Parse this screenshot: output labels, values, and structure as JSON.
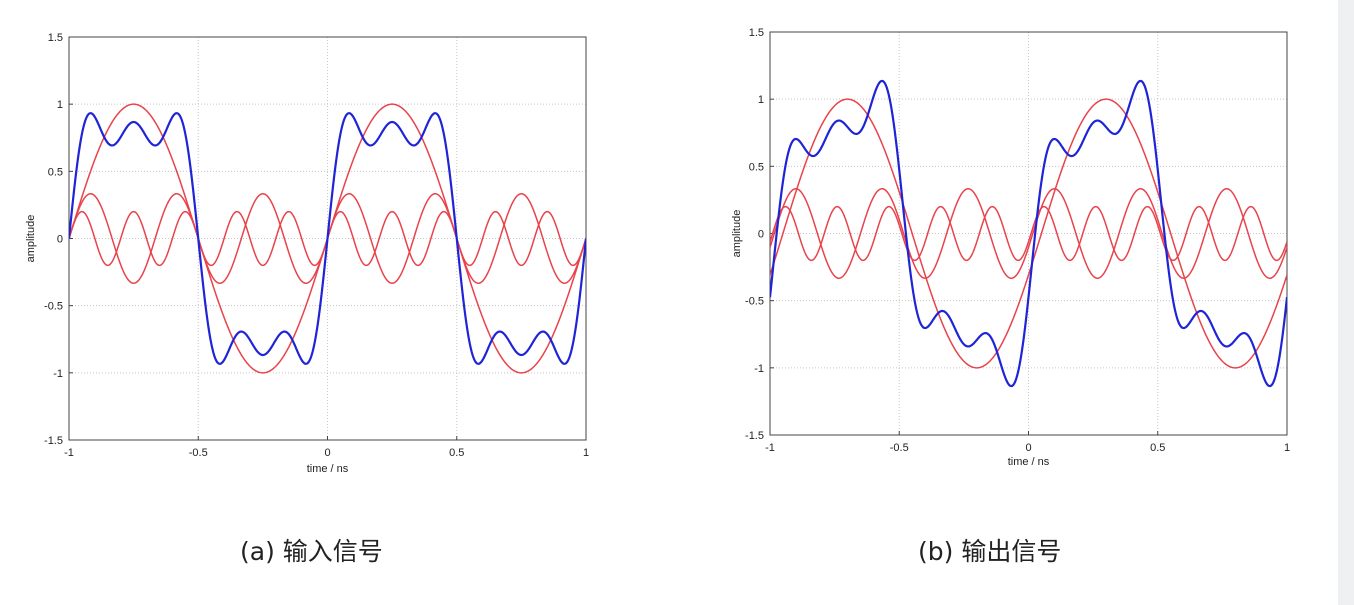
{
  "colors": {
    "harmonic": "#e8434b",
    "sum": "#1f24d6"
  },
  "chart_data": [
    {
      "type": "line",
      "xlabel": "time / ns",
      "ylabel": "amplitude",
      "xlim": [
        -1,
        1
      ],
      "ylim": [
        -1.5,
        1.5
      ],
      "xticks": [
        "-1",
        "-0.5",
        "0",
        "0.5",
        "1"
      ],
      "yticks": [
        "1.5",
        "1",
        "0.5",
        "0",
        "-0.5",
        "-1",
        "-1.5"
      ],
      "grid": true,
      "caption": "(a) 输入信号",
      "series": [
        {
          "color": "#e8434b",
          "amplitude": 1,
          "harmonic": 1,
          "phase_ns": 0,
          "role": "component"
        },
        {
          "color": "#e8434b",
          "amplitude": 0.333,
          "harmonic": 3,
          "phase_ns": 0,
          "role": "component"
        },
        {
          "color": "#e8434b",
          "amplitude": 0.2,
          "harmonic": 5,
          "phase_ns": 0,
          "role": "component"
        },
        {
          "color": "#1f24d6",
          "role": "sum"
        }
      ]
    },
    {
      "type": "line",
      "xlabel": "time / ns",
      "ylabel": "amplitude",
      "xlim": [
        -1,
        1
      ],
      "ylim": [
        -1.5,
        1.5
      ],
      "xticks": [
        "-1",
        "-0.5",
        "0",
        "0.5",
        "1"
      ],
      "yticks": [
        "1.5",
        "1",
        "0.5",
        "0",
        "-0.5",
        "-1",
        "-1.5"
      ],
      "grid": true,
      "caption": "(b) 输出信号",
      "series": [
        {
          "color": "#e8434b",
          "amplitude": 1,
          "harmonic": 1,
          "phase_ns": 0.05,
          "role": "component"
        },
        {
          "color": "#e8434b",
          "amplitude": 0.333,
          "harmonic": 3,
          "phase_ns": 0.0167,
          "role": "component"
        },
        {
          "color": "#e8434b",
          "amplitude": 0.2,
          "harmonic": 5,
          "phase_ns": 0.01,
          "role": "component"
        },
        {
          "color": "#1f24d6",
          "role": "sum"
        }
      ]
    }
  ]
}
